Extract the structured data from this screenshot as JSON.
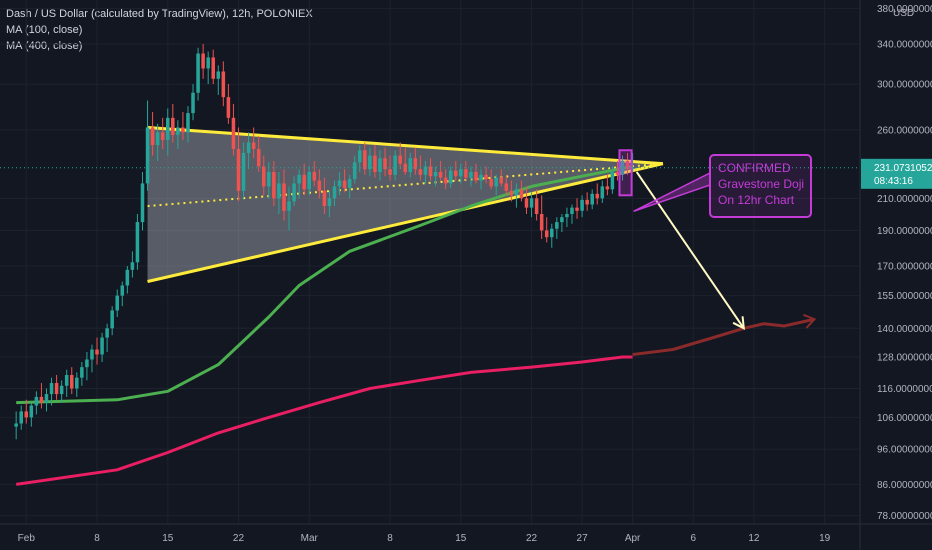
{
  "header": {
    "title": "Dash / US Dollar (calculated by TradingView), 12h, POLONIEX",
    "ma_labels": [
      "MA (100, close)",
      "MA (400, close)"
    ]
  },
  "chart_data": {
    "type": "candlestick",
    "title": "Dash / US Dollar (calculated by TradingView), 12h, POLONIEX",
    "yscale": "log",
    "ylim": [
      76,
      390
    ],
    "y_unit_label": "USD",
    "y_ticks": [
      "78.00000000",
      "86.00000000",
      "96.00000000",
      "106.00000000",
      "116.00000000",
      "128.00000000",
      "140.00000000",
      "155.00000000",
      "170.00000000",
      "190.00000000",
      "210.00000000",
      "260.00000000",
      "300.00000000",
      "340.00000000",
      "380.00000000"
    ],
    "y_tick_values": [
      78,
      86,
      96,
      106,
      116,
      128,
      140,
      155,
      170,
      190,
      210,
      260,
      300,
      340,
      380
    ],
    "x_ticks": [
      "Feb",
      "8",
      "15",
      "22",
      "Mar",
      "8",
      "15",
      "22",
      "27",
      "Apr",
      "6",
      "12",
      "19"
    ],
    "x_tick_days": [
      1,
      8,
      15,
      22,
      29,
      37,
      44,
      51,
      56,
      61,
      67,
      73,
      80
    ],
    "current_price": "231.07310520",
    "countdown": "08:43:16",
    "series": [
      {
        "name": "MA (100, close)",
        "color": "#4caf50",
        "points": [
          [
            0,
            111
          ],
          [
            10,
            112
          ],
          [
            15,
            115
          ],
          [
            20,
            125
          ],
          [
            25,
            145
          ],
          [
            28,
            160
          ],
          [
            33,
            178
          ],
          [
            40,
            193
          ],
          [
            45,
            205
          ],
          [
            51,
            218
          ],
          [
            56,
            225
          ],
          [
            61,
            232
          ]
        ]
      },
      {
        "name": "MA (400, close)",
        "color": "#e91e63",
        "points": [
          [
            0,
            86
          ],
          [
            10,
            90
          ],
          [
            15,
            95
          ],
          [
            20,
            101
          ],
          [
            25,
            106
          ],
          [
            30,
            111
          ],
          [
            35,
            116
          ],
          [
            40,
            119
          ],
          [
            45,
            122
          ],
          [
            51,
            124
          ],
          [
            56,
            126
          ],
          [
            60,
            128
          ],
          [
            61,
            128
          ]
        ]
      },
      {
        "name": "",
        "color": "#8b2a2a",
        "points": [
          [
            61,
            129
          ],
          [
            65,
            131
          ],
          [
            69,
            136
          ],
          [
            72,
            140
          ],
          [
            74,
            142
          ],
          [
            76,
            141
          ],
          [
            79,
            144
          ]
        ]
      }
    ],
    "candles": [
      {
        "t": 0,
        "o": 103,
        "h": 108,
        "l": 99,
        "c": 104
      },
      {
        "t": 0.5,
        "o": 104,
        "h": 110,
        "l": 102,
        "c": 108
      },
      {
        "t": 1,
        "o": 108,
        "h": 112,
        "l": 104,
        "c": 106
      },
      {
        "t": 1.5,
        "o": 106,
        "h": 111,
        "l": 103,
        "c": 110
      },
      {
        "t": 2,
        "o": 110,
        "h": 115,
        "l": 107,
        "c": 113
      },
      {
        "t": 2.5,
        "o": 113,
        "h": 118,
        "l": 109,
        "c": 111
      },
      {
        "t": 3,
        "o": 111,
        "h": 116,
        "l": 108,
        "c": 114
      },
      {
        "t": 3.5,
        "o": 114,
        "h": 120,
        "l": 110,
        "c": 118
      },
      {
        "t": 4,
        "o": 118,
        "h": 121,
        "l": 112,
        "c": 114
      },
      {
        "t": 4.5,
        "o": 114,
        "h": 119,
        "l": 111,
        "c": 117
      },
      {
        "t": 5,
        "o": 117,
        "h": 123,
        "l": 113,
        "c": 121
      },
      {
        "t": 5.5,
        "o": 121,
        "h": 124,
        "l": 114,
        "c": 116
      },
      {
        "t": 6,
        "o": 116,
        "h": 122,
        "l": 113,
        "c": 120
      },
      {
        "t": 6.5,
        "o": 120,
        "h": 126,
        "l": 117,
        "c": 124
      },
      {
        "t": 7,
        "o": 124,
        "h": 130,
        "l": 119,
        "c": 127
      },
      {
        "t": 7.5,
        "o": 127,
        "h": 133,
        "l": 122,
        "c": 131
      },
      {
        "t": 8,
        "o": 131,
        "h": 136,
        "l": 125,
        "c": 129
      },
      {
        "t": 8.5,
        "o": 129,
        "h": 138,
        "l": 126,
        "c": 136
      },
      {
        "t": 9,
        "o": 136,
        "h": 142,
        "l": 130,
        "c": 140
      },
      {
        "t": 9.5,
        "o": 140,
        "h": 150,
        "l": 137,
        "c": 148
      },
      {
        "t": 10,
        "o": 148,
        "h": 158,
        "l": 145,
        "c": 155
      },
      {
        "t": 10.5,
        "o": 155,
        "h": 162,
        "l": 150,
        "c": 160
      },
      {
        "t": 11,
        "o": 160,
        "h": 170,
        "l": 156,
        "c": 168
      },
      {
        "t": 11.5,
        "o": 168,
        "h": 178,
        "l": 164,
        "c": 172
      },
      {
        "t": 12,
        "o": 172,
        "h": 200,
        "l": 168,
        "c": 195
      },
      {
        "t": 12.5,
        "o": 195,
        "h": 228,
        "l": 190,
        "c": 220
      },
      {
        "t": 13,
        "o": 220,
        "h": 285,
        "l": 215,
        "c": 262
      },
      {
        "t": 13.5,
        "o": 262,
        "h": 275,
        "l": 240,
        "c": 248
      },
      {
        "t": 14,
        "o": 248,
        "h": 265,
        "l": 236,
        "c": 258
      },
      {
        "t": 14.5,
        "o": 258,
        "h": 270,
        "l": 245,
        "c": 252
      },
      {
        "t": 15,
        "o": 252,
        "h": 278,
        "l": 240,
        "c": 270
      },
      {
        "t": 15.5,
        "o": 270,
        "h": 282,
        "l": 250,
        "c": 256
      },
      {
        "t": 16,
        "o": 256,
        "h": 268,
        "l": 245,
        "c": 262
      },
      {
        "t": 16.5,
        "o": 262,
        "h": 275,
        "l": 252,
        "c": 258
      },
      {
        "t": 17,
        "o": 258,
        "h": 280,
        "l": 250,
        "c": 274
      },
      {
        "t": 17.5,
        "o": 274,
        "h": 300,
        "l": 268,
        "c": 292
      },
      {
        "t": 18,
        "o": 292,
        "h": 336,
        "l": 285,
        "c": 330
      },
      {
        "t": 18.5,
        "o": 330,
        "h": 340,
        "l": 305,
        "c": 315
      },
      {
        "t": 19,
        "o": 315,
        "h": 332,
        "l": 300,
        "c": 326
      },
      {
        "t": 19.5,
        "o": 326,
        "h": 334,
        "l": 300,
        "c": 305
      },
      {
        "t": 20,
        "o": 305,
        "h": 318,
        "l": 290,
        "c": 312
      },
      {
        "t": 20.5,
        "o": 312,
        "h": 322,
        "l": 280,
        "c": 288
      },
      {
        "t": 21,
        "o": 288,
        "h": 300,
        "l": 265,
        "c": 270
      },
      {
        "t": 21.5,
        "o": 270,
        "h": 282,
        "l": 240,
        "c": 245
      },
      {
        "t": 22,
        "o": 245,
        "h": 262,
        "l": 208,
        "c": 215
      },
      {
        "t": 22.5,
        "o": 215,
        "h": 250,
        "l": 210,
        "c": 242
      },
      {
        "t": 23,
        "o": 242,
        "h": 258,
        "l": 230,
        "c": 250
      },
      {
        "t": 23.5,
        "o": 250,
        "h": 262,
        "l": 238,
        "c": 245
      },
      {
        "t": 24,
        "o": 245,
        "h": 255,
        "l": 228,
        "c": 232
      },
      {
        "t": 24.5,
        "o": 232,
        "h": 240,
        "l": 212,
        "c": 218
      },
      {
        "t": 25,
        "o": 218,
        "h": 235,
        "l": 210,
        "c": 228
      },
      {
        "t": 25.5,
        "o": 228,
        "h": 236,
        "l": 205,
        "c": 210
      },
      {
        "t": 26,
        "o": 210,
        "h": 228,
        "l": 200,
        "c": 220
      },
      {
        "t": 26.5,
        "o": 220,
        "h": 230,
        "l": 196,
        "c": 202
      },
      {
        "t": 27,
        "o": 202,
        "h": 218,
        "l": 190,
        "c": 208
      },
      {
        "t": 27.5,
        "o": 208,
        "h": 225,
        "l": 205,
        "c": 220
      },
      {
        "t": 28,
        "o": 220,
        "h": 230,
        "l": 210,
        "c": 226
      },
      {
        "t": 28.5,
        "o": 226,
        "h": 234,
        "l": 212,
        "c": 216
      },
      {
        "t": 29,
        "o": 216,
        "h": 232,
        "l": 212,
        "c": 228
      },
      {
        "t": 29.5,
        "o": 228,
        "h": 236,
        "l": 218,
        "c": 222
      },
      {
        "t": 30,
        "o": 222,
        "h": 230,
        "l": 210,
        "c": 215
      },
      {
        "t": 30.5,
        "o": 215,
        "h": 224,
        "l": 200,
        "c": 205
      },
      {
        "t": 31,
        "o": 205,
        "h": 215,
        "l": 198,
        "c": 210
      },
      {
        "t": 31.5,
        "o": 210,
        "h": 222,
        "l": 205,
        "c": 218
      },
      {
        "t": 32,
        "o": 218,
        "h": 228,
        "l": 212,
        "c": 222
      },
      {
        "t": 32.5,
        "o": 222,
        "h": 230,
        "l": 214,
        "c": 217
      },
      {
        "t": 33,
        "o": 217,
        "h": 226,
        "l": 210,
        "c": 223
      },
      {
        "t": 33.5,
        "o": 223,
        "h": 240,
        "l": 220,
        "c": 235
      },
      {
        "t": 34,
        "o": 235,
        "h": 248,
        "l": 228,
        "c": 244
      },
      {
        "t": 34.5,
        "o": 244,
        "h": 250,
        "l": 226,
        "c": 230
      },
      {
        "t": 35,
        "o": 230,
        "h": 246,
        "l": 225,
        "c": 240
      },
      {
        "t": 35.5,
        "o": 240,
        "h": 248,
        "l": 224,
        "c": 228
      },
      {
        "t": 36,
        "o": 228,
        "h": 244,
        "l": 222,
        "c": 238
      },
      {
        "t": 36.5,
        "o": 238,
        "h": 246,
        "l": 225,
        "c": 230
      },
      {
        "t": 37,
        "o": 230,
        "h": 240,
        "l": 222,
        "c": 226
      },
      {
        "t": 37.5,
        "o": 226,
        "h": 244,
        "l": 222,
        "c": 240
      },
      {
        "t": 38,
        "o": 240,
        "h": 250,
        "l": 230,
        "c": 234
      },
      {
        "t": 38.5,
        "o": 234,
        "h": 246,
        "l": 226,
        "c": 228
      },
      {
        "t": 39,
        "o": 228,
        "h": 242,
        "l": 224,
        "c": 238
      },
      {
        "t": 39.5,
        "o": 238,
        "h": 246,
        "l": 226,
        "c": 230
      },
      {
        "t": 40,
        "o": 230,
        "h": 240,
        "l": 222,
        "c": 226
      },
      {
        "t": 40.5,
        "o": 226,
        "h": 236,
        "l": 220,
        "c": 232
      },
      {
        "t": 41,
        "o": 232,
        "h": 238,
        "l": 222,
        "c": 225
      },
      {
        "t": 41.5,
        "o": 225,
        "h": 232,
        "l": 218,
        "c": 228
      },
      {
        "t": 42,
        "o": 228,
        "h": 236,
        "l": 222,
        "c": 224
      },
      {
        "t": 42.5,
        "o": 224,
        "h": 230,
        "l": 216,
        "c": 220
      },
      {
        "t": 43,
        "o": 220,
        "h": 232,
        "l": 217,
        "c": 229
      },
      {
        "t": 43.5,
        "o": 229,
        "h": 236,
        "l": 222,
        "c": 225
      },
      {
        "t": 44,
        "o": 225,
        "h": 234,
        "l": 220,
        "c": 230
      },
      {
        "t": 44.5,
        "o": 230,
        "h": 236,
        "l": 222,
        "c": 224
      },
      {
        "t": 45,
        "o": 224,
        "h": 232,
        "l": 218,
        "c": 228
      },
      {
        "t": 45.5,
        "o": 228,
        "h": 234,
        "l": 220,
        "c": 222
      },
      {
        "t": 46,
        "o": 222,
        "h": 230,
        "l": 216,
        "c": 226
      },
      {
        "t": 46.5,
        "o": 226,
        "h": 232,
        "l": 220,
        "c": 223
      },
      {
        "t": 47,
        "o": 223,
        "h": 230,
        "l": 216,
        "c": 218
      },
      {
        "t": 47.5,
        "o": 218,
        "h": 226,
        "l": 212,
        "c": 224
      },
      {
        "t": 48,
        "o": 224,
        "h": 230,
        "l": 218,
        "c": 220
      },
      {
        "t": 48.5,
        "o": 220,
        "h": 226,
        "l": 212,
        "c": 215
      },
      {
        "t": 49,
        "o": 215,
        "h": 222,
        "l": 208,
        "c": 212
      },
      {
        "t": 49.5,
        "o": 212,
        "h": 220,
        "l": 204,
        "c": 216
      },
      {
        "t": 50,
        "o": 216,
        "h": 222,
        "l": 208,
        "c": 210
      },
      {
        "t": 50.5,
        "o": 210,
        "h": 218,
        "l": 200,
        "c": 204
      },
      {
        "t": 51,
        "o": 204,
        "h": 214,
        "l": 198,
        "c": 210
      },
      {
        "t": 51.5,
        "o": 210,
        "h": 216,
        "l": 196,
        "c": 200
      },
      {
        "t": 52,
        "o": 200,
        "h": 212,
        "l": 185,
        "c": 190
      },
      {
        "t": 52.5,
        "o": 190,
        "h": 198,
        "l": 183,
        "c": 186
      },
      {
        "t": 53,
        "o": 186,
        "h": 194,
        "l": 180,
        "c": 191
      },
      {
        "t": 53.5,
        "o": 191,
        "h": 198,
        "l": 185,
        "c": 195
      },
      {
        "t": 54,
        "o": 195,
        "h": 200,
        "l": 189,
        "c": 198
      },
      {
        "t": 54.5,
        "o": 198,
        "h": 204,
        "l": 192,
        "c": 200
      },
      {
        "t": 55,
        "o": 200,
        "h": 206,
        "l": 194,
        "c": 204
      },
      {
        "t": 55.5,
        "o": 204,
        "h": 210,
        "l": 197,
        "c": 202
      },
      {
        "t": 56,
        "o": 202,
        "h": 212,
        "l": 198,
        "c": 209
      },
      {
        "t": 56.5,
        "o": 209,
        "h": 214,
        "l": 202,
        "c": 206
      },
      {
        "t": 57,
        "o": 206,
        "h": 216,
        "l": 203,
        "c": 213
      },
      {
        "t": 57.5,
        "o": 213,
        "h": 220,
        "l": 206,
        "c": 210
      },
      {
        "t": 58,
        "o": 210,
        "h": 222,
        "l": 207,
        "c": 218
      },
      {
        "t": 58.5,
        "o": 218,
        "h": 226,
        "l": 212,
        "c": 216
      },
      {
        "t": 59,
        "o": 216,
        "h": 232,
        "l": 213,
        "c": 228
      },
      {
        "t": 59.5,
        "o": 228,
        "h": 236,
        "l": 222,
        "c": 226
      },
      {
        "t": 60,
        "o": 226,
        "h": 240,
        "l": 222,
        "c": 236
      },
      {
        "t": 60.5,
        "o": 236,
        "h": 242,
        "l": 226,
        "c": 230
      },
      {
        "t": 61,
        "o": 230,
        "h": 242,
        "l": 228,
        "c": 231
      }
    ],
    "triangle": {
      "upper": [
        [
          13,
          262
        ],
        [
          64,
          234
        ]
      ],
      "lower": [
        [
          13,
          162
        ],
        [
          64,
          234
        ]
      ],
      "mid": [
        [
          13,
          205
        ],
        [
          64,
          234
        ]
      ]
    },
    "doji_box": [
      [
        59.7,
        244
      ],
      [
        60.9,
        212
      ]
    ],
    "forecast_arrow": [
      [
        61.4,
        228
      ],
      [
        72,
        140
      ]
    ],
    "annotation": {
      "lines": [
        "CONFIRMED",
        "Gravestone Doji",
        "On 12hr Chart"
      ],
      "color": "#c43bd8"
    }
  }
}
